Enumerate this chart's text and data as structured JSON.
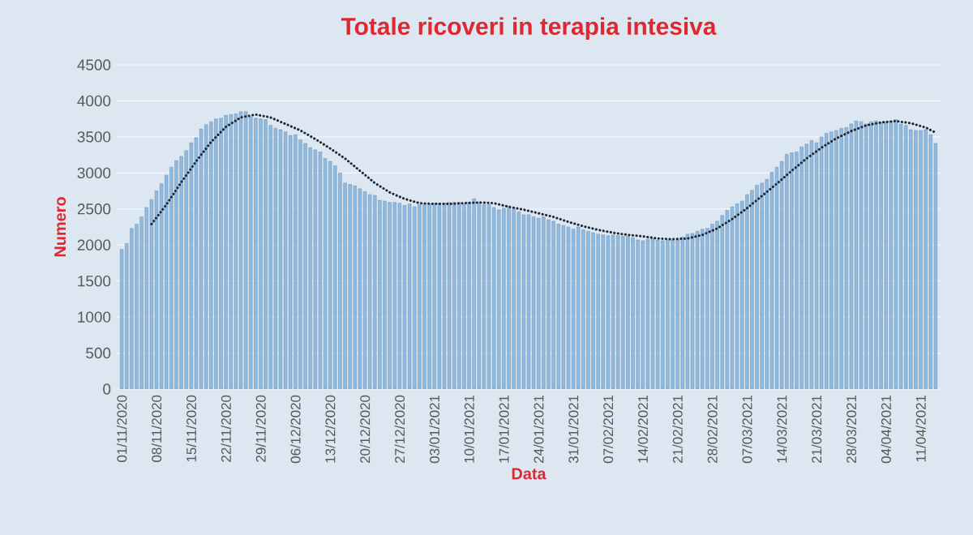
{
  "chart_data": {
    "type": "bar",
    "title": "Totale ricoveri in terapia intesiva",
    "xlabel": "Data",
    "ylabel": "Numero",
    "xlim": [
      "2020-10-31",
      "2021-04-15"
    ],
    "xticks": [
      {
        "value": "2020-11-01",
        "label": "01/11/2020"
      },
      {
        "value": "2020-11-08",
        "label": "08/11/2020"
      },
      {
        "value": "2020-11-15",
        "label": "15/11/2020"
      },
      {
        "value": "2020-11-22",
        "label": "22/11/2020"
      },
      {
        "value": "2020-11-29",
        "label": "29/11/2020"
      },
      {
        "value": "2020-12-06",
        "label": "06/12/2020"
      },
      {
        "value": "2020-12-13",
        "label": "13/12/2020"
      },
      {
        "value": "2020-12-20",
        "label": "20/12/2020"
      },
      {
        "value": "2020-12-27",
        "label": "27/12/2020"
      },
      {
        "value": "2021-01-03",
        "label": "03/01/2021"
      },
      {
        "value": "2021-01-10",
        "label": "10/01/2021"
      },
      {
        "value": "2021-01-17",
        "label": "17/01/2021"
      },
      {
        "value": "2021-01-24",
        "label": "24/01/2021"
      },
      {
        "value": "2021-01-31",
        "label": "31/01/2021"
      },
      {
        "value": "2021-02-07",
        "label": "07/02/2021"
      },
      {
        "value": "2021-02-14",
        "label": "14/02/2021"
      },
      {
        "value": "2021-02-21",
        "label": "21/02/2021"
      },
      {
        "value": "2021-02-28",
        "label": "28/02/2021"
      },
      {
        "value": "2021-03-07",
        "label": "07/03/2021"
      },
      {
        "value": "2021-03-14",
        "label": "14/03/2021"
      },
      {
        "value": "2021-03-21",
        "label": "21/03/2021"
      },
      {
        "value": "2021-03-28",
        "label": "28/03/2021"
      },
      {
        "value": "2021-04-04",
        "label": "04/04/2021"
      },
      {
        "value": "2021-04-11",
        "label": "11/04/2021"
      }
    ],
    "ylim": [
      0,
      4500
    ],
    "yticks": [
      0,
      500,
      1000,
      1500,
      2000,
      2500,
      3000,
      3500,
      4000,
      4500
    ],
    "grid": "y",
    "line_style": "dotted",
    "series": [
      {
        "color": "#8fbbe2",
        "x": [
          "2020-11-01",
          "2020-11-02",
          "2020-11-03",
          "2020-11-04",
          "2020-11-05",
          "2020-11-06",
          "2020-11-07",
          "2020-11-08",
          "2020-11-09",
          "2020-11-10",
          "2020-11-11",
          "2020-11-12",
          "2020-11-13",
          "2020-11-14",
          "2020-11-15",
          "2020-11-16",
          "2020-11-17",
          "2020-11-18",
          "2020-11-19",
          "2020-11-20",
          "2020-11-21",
          "2020-11-22",
          "2020-11-23",
          "2020-11-24",
          "2020-11-25",
          "2020-11-26",
          "2020-11-27",
          "2020-11-28",
          "2020-11-29",
          "2020-11-30",
          "2020-12-01",
          "2020-12-02",
          "2020-12-03",
          "2020-12-04",
          "2020-12-05",
          "2020-12-06",
          "2020-12-07",
          "2020-12-08",
          "2020-12-09",
          "2020-12-10",
          "2020-12-11",
          "2020-12-12",
          "2020-12-13",
          "2020-12-14",
          "2020-12-15",
          "2020-12-16",
          "2020-12-17",
          "2020-12-18",
          "2020-12-19",
          "2020-12-20",
          "2020-12-21",
          "2020-12-22",
          "2020-12-23",
          "2020-12-24",
          "2020-12-25",
          "2020-12-26",
          "2020-12-27",
          "2020-12-28",
          "2020-12-29",
          "2020-12-30",
          "2020-12-31",
          "2021-01-01",
          "2021-01-02",
          "2021-01-03",
          "2021-01-04",
          "2021-01-05",
          "2021-01-06",
          "2021-01-07",
          "2021-01-08",
          "2021-01-09",
          "2021-01-10",
          "2021-01-11",
          "2021-01-12",
          "2021-01-13",
          "2021-01-14",
          "2021-01-15",
          "2021-01-16",
          "2021-01-17",
          "2021-01-18",
          "2021-01-19",
          "2021-01-20",
          "2021-01-21",
          "2021-01-22",
          "2021-01-23",
          "2021-01-24",
          "2021-01-25",
          "2021-01-26",
          "2021-01-27",
          "2021-01-28",
          "2021-01-29",
          "2021-01-30",
          "2021-01-31",
          "2021-02-01",
          "2021-02-02",
          "2021-02-03",
          "2021-02-04",
          "2021-02-05",
          "2021-02-06",
          "2021-02-07",
          "2021-02-08",
          "2021-02-09",
          "2021-02-10",
          "2021-02-11",
          "2021-02-12",
          "2021-02-13",
          "2021-02-14",
          "2021-02-15",
          "2021-02-16",
          "2021-02-17",
          "2021-02-18",
          "2021-02-19",
          "2021-02-20",
          "2021-02-21",
          "2021-02-22",
          "2021-02-23",
          "2021-02-24",
          "2021-02-25",
          "2021-02-26",
          "2021-02-27",
          "2021-02-28",
          "2021-03-01",
          "2021-03-02",
          "2021-03-03",
          "2021-03-04",
          "2021-03-05",
          "2021-03-06",
          "2021-03-07",
          "2021-03-08",
          "2021-03-09",
          "2021-03-10",
          "2021-03-11",
          "2021-03-12",
          "2021-03-13",
          "2021-03-14",
          "2021-03-15",
          "2021-03-16",
          "2021-03-17",
          "2021-03-18",
          "2021-03-19",
          "2021-03-20",
          "2021-03-21",
          "2021-03-22",
          "2021-03-23",
          "2021-03-24",
          "2021-03-25",
          "2021-03-26",
          "2021-03-27",
          "2021-03-28",
          "2021-03-29",
          "2021-03-30",
          "2021-03-31",
          "2021-04-01",
          "2021-04-02",
          "2021-04-03",
          "2021-04-04",
          "2021-04-05",
          "2021-04-06",
          "2021-04-07",
          "2021-04-08",
          "2021-04-09",
          "2021-04-10",
          "2021-04-11",
          "2021-04-12",
          "2021-04-13",
          "2021-04-14"
        ],
        "values": [
          1940,
          2020,
          2230,
          2290,
          2390,
          2520,
          2630,
          2750,
          2850,
          2970,
          3080,
          3170,
          3230,
          3310,
          3420,
          3490,
          3610,
          3670,
          3710,
          3750,
          3760,
          3800,
          3810,
          3820,
          3850,
          3850,
          3780,
          3760,
          3750,
          3740,
          3660,
          3620,
          3600,
          3570,
          3520,
          3530,
          3460,
          3410,
          3350,
          3320,
          3290,
          3200,
          3160,
          3100,
          3000,
          2860,
          2840,
          2820,
          2780,
          2740,
          2700,
          2690,
          2620,
          2610,
          2590,
          2590,
          2580,
          2550,
          2570,
          2530,
          2560,
          2570,
          2570,
          2580,
          2580,
          2580,
          2590,
          2590,
          2590,
          2570,
          2590,
          2640,
          2590,
          2560,
          2560,
          2520,
          2490,
          2510,
          2540,
          2500,
          2460,
          2420,
          2420,
          2390,
          2370,
          2390,
          2350,
          2330,
          2290,
          2270,
          2250,
          2220,
          2250,
          2210,
          2190,
          2170,
          2150,
          2140,
          2130,
          2140,
          2130,
          2120,
          2120,
          2100,
          2070,
          2060,
          2080,
          2090,
          2070,
          2060,
          2070,
          2070,
          2070,
          2110,
          2150,
          2160,
          2190,
          2220,
          2230,
          2290,
          2330,
          2410,
          2480,
          2530,
          2570,
          2610,
          2700,
          2760,
          2830,
          2860,
          2910,
          3010,
          3080,
          3160,
          3260,
          3280,
          3290,
          3360,
          3400,
          3450,
          3420,
          3500,
          3550,
          3570,
          3590,
          3620,
          3630,
          3680,
          3720,
          3710,
          3680,
          3710,
          3720,
          3700,
          3710,
          3720,
          3740,
          3680,
          3660,
          3600,
          3590,
          3590,
          3600,
          3530,
          3410
        ]
      },
      {
        "type": "line",
        "color": "#1c2733",
        "x": [
          "2020-11-07",
          "2020-11-10",
          "2020-11-13",
          "2020-11-16",
          "2020-11-19",
          "2020-11-22",
          "2020-11-25",
          "2020-11-28",
          "2020-12-01",
          "2020-12-04",
          "2020-12-07",
          "2020-12-10",
          "2020-12-13",
          "2020-12-16",
          "2020-12-19",
          "2020-12-22",
          "2020-12-25",
          "2020-12-28",
          "2020-12-31",
          "2021-01-03",
          "2021-01-06",
          "2021-01-09",
          "2021-01-12",
          "2021-01-15",
          "2021-01-18",
          "2021-01-21",
          "2021-01-24",
          "2021-01-27",
          "2021-01-30",
          "2021-02-02",
          "2021-02-05",
          "2021-02-08",
          "2021-02-11",
          "2021-02-14",
          "2021-02-17",
          "2021-02-20",
          "2021-02-23",
          "2021-02-26",
          "2021-03-01",
          "2021-03-04",
          "2021-03-07",
          "2021-03-10",
          "2021-03-13",
          "2021-03-16",
          "2021-03-19",
          "2021-03-22",
          "2021-03-25",
          "2021-03-28",
          "2021-03-31",
          "2021-04-03",
          "2021-04-06",
          "2021-04-09",
          "2021-04-12",
          "2021-04-14"
        ],
        "values": [
          2290,
          2560,
          2870,
          3160,
          3430,
          3640,
          3770,
          3810,
          3770,
          3680,
          3590,
          3470,
          3340,
          3200,
          3030,
          2860,
          2730,
          2640,
          2580,
          2570,
          2570,
          2580,
          2590,
          2580,
          2530,
          2490,
          2440,
          2390,
          2320,
          2260,
          2210,
          2170,
          2140,
          2120,
          2090,
          2080,
          2090,
          2140,
          2230,
          2360,
          2510,
          2680,
          2850,
          3030,
          3200,
          3350,
          3480,
          3580,
          3660,
          3700,
          3720,
          3690,
          3630,
          3560
        ]
      }
    ]
  }
}
